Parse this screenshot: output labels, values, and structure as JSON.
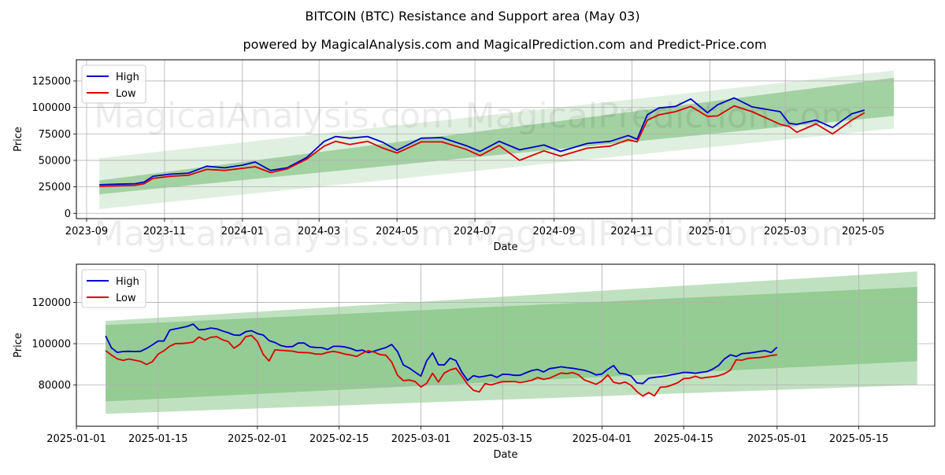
{
  "page": {
    "title": "BITCOIN (BTC) Resistance and Support area (May 03)",
    "subtitle": "powered by MagicalAnalysis.com and MagicalPrediction.com and Predict-Price.com",
    "watermarks": [
      "MagicalAnalysis.com",
      "MagicalPrediction.com"
    ]
  },
  "colors": {
    "high": "#0000cc",
    "low": "#dd0000",
    "band": "#2e9a2e"
  },
  "chart_data": [
    {
      "type": "line",
      "xlabel": "Date",
      "ylabel": "Price",
      "ylim": [
        -5000,
        145000
      ],
      "xlim": [
        "2023-08-24",
        "2025-06-26"
      ],
      "x_ticks": [
        "2023-09",
        "2023-11",
        "2024-01",
        "2024-03",
        "2024-05",
        "2024-07",
        "2024-09",
        "2024-11",
        "2025-01",
        "2025-03",
        "2025-05"
      ],
      "y_ticks": [
        0,
        25000,
        50000,
        75000,
        100000,
        125000
      ],
      "grid": true,
      "legend": {
        "position": "top-left",
        "entries": [
          "High",
          "Low"
        ]
      },
      "bands": [
        {
          "x": [
            "2023-09-11",
            "2025-05-25"
          ],
          "lower": [
            4000,
            80000
          ],
          "upper": [
            52000,
            135000
          ],
          "opacity": 0.15
        },
        {
          "x": [
            "2023-09-11",
            "2025-05-25"
          ],
          "lower": [
            18000,
            92000
          ],
          "upper": [
            31000,
            128000
          ],
          "opacity": 0.35
        }
      ],
      "x": [
        "2023-09-11",
        "2023-09-25",
        "2023-10-09",
        "2023-10-16",
        "2023-10-23",
        "2023-11-06",
        "2023-11-20",
        "2023-12-04",
        "2023-12-18",
        "2024-01-01",
        "2024-01-11",
        "2024-01-23",
        "2024-02-05",
        "2024-02-20",
        "2024-03-05",
        "2024-03-14",
        "2024-03-25",
        "2024-04-08",
        "2024-04-20",
        "2024-05-01",
        "2024-05-20",
        "2024-06-05",
        "2024-06-24",
        "2024-07-05",
        "2024-07-20",
        "2024-08-05",
        "2024-08-24",
        "2024-09-06",
        "2024-09-27",
        "2024-10-15",
        "2024-10-29",
        "2024-11-05",
        "2024-11-13",
        "2024-11-22",
        "2024-12-05",
        "2024-12-17",
        "2024-12-30",
        "2025-01-07",
        "2025-01-20",
        "2025-02-03",
        "2025-02-25",
        "2025-03-04",
        "2025-03-10",
        "2025-03-25",
        "2025-04-07",
        "2025-04-22",
        "2025-05-02"
      ],
      "series": [
        {
          "name": "High",
          "values": [
            27000,
            27500,
            28000,
            29500,
            35000,
            37000,
            38000,
            44500,
            43000,
            45500,
            48500,
            40500,
            43000,
            52500,
            68000,
            72500,
            71000,
            72500,
            67000,
            59500,
            71000,
            71500,
            64000,
            58500,
            68000,
            60000,
            64500,
            58500,
            66000,
            68000,
            73500,
            70000,
            93000,
            99500,
            101000,
            108000,
            95000,
            102500,
            109000,
            100500,
            96000,
            85000,
            84000,
            88000,
            81000,
            94000,
            97500
          ]
        },
        {
          "name": "Low",
          "values": [
            25500,
            26000,
            26500,
            28000,
            33000,
            35000,
            36000,
            41500,
            40500,
            42500,
            44000,
            38500,
            42000,
            51000,
            63500,
            68000,
            65000,
            68000,
            61500,
            57000,
            67500,
            67500,
            60500,
            54500,
            64000,
            50000,
            59000,
            54000,
            61500,
            63500,
            69500,
            67500,
            88000,
            93000,
            96000,
            101000,
            91500,
            92000,
            101500,
            96000,
            84000,
            82000,
            76500,
            84500,
            75000,
            88000,
            95000
          ]
        }
      ]
    },
    {
      "type": "line",
      "xlabel": "Date",
      "ylabel": "Price",
      "ylim": [
        60000,
        138500
      ],
      "xlim": [
        "2025-01-01",
        "2025-05-28"
      ],
      "x_ticks": [
        "2025-01-01",
        "2025-01-15",
        "2025-02-01",
        "2025-02-15",
        "2025-03-01",
        "2025-03-15",
        "2025-04-01",
        "2025-04-15",
        "2025-05-01",
        "2025-05-15"
      ],
      "y_ticks": [
        80000,
        100000,
        120000
      ],
      "grid": true,
      "legend": {
        "position": "top-left",
        "entries": [
          "High",
          "Low"
        ]
      },
      "bands": [
        {
          "x": [
            "2025-01-06",
            "2025-05-25"
          ],
          "lower": [
            66000,
            80000
          ],
          "upper": [
            111000,
            135000
          ],
          "opacity": 0.3
        },
        {
          "x": [
            "2025-01-06",
            "2025-05-25"
          ],
          "lower": [
            72000,
            91500
          ],
          "upper": [
            109000,
            127500
          ],
          "opacity": 0.3
        }
      ],
      "x": [
        "2025-01-06",
        "2025-01-07",
        "2025-01-08",
        "2025-01-09",
        "2025-01-10",
        "2025-01-11",
        "2025-01-12",
        "2025-01-13",
        "2025-01-14",
        "2025-01-15",
        "2025-01-16",
        "2025-01-17",
        "2025-01-18",
        "2025-01-19",
        "2025-01-20",
        "2025-01-21",
        "2025-01-22",
        "2025-01-23",
        "2025-01-24",
        "2025-01-25",
        "2025-01-26",
        "2025-01-27",
        "2025-01-28",
        "2025-01-29",
        "2025-01-30",
        "2025-01-31",
        "2025-02-01",
        "2025-02-02",
        "2025-02-03",
        "2025-02-04",
        "2025-02-05",
        "2025-02-06",
        "2025-02-07",
        "2025-02-08",
        "2025-02-09",
        "2025-02-10",
        "2025-02-11",
        "2025-02-12",
        "2025-02-13",
        "2025-02-14",
        "2025-02-15",
        "2025-02-16",
        "2025-02-17",
        "2025-02-18",
        "2025-02-19",
        "2025-02-20",
        "2025-02-21",
        "2025-02-22",
        "2025-02-23",
        "2025-02-24",
        "2025-02-25",
        "2025-02-26",
        "2025-02-27",
        "2025-02-28",
        "2025-03-01",
        "2025-03-02",
        "2025-03-03",
        "2025-03-04",
        "2025-03-05",
        "2025-03-06",
        "2025-03-07",
        "2025-03-08",
        "2025-03-09",
        "2025-03-10",
        "2025-03-11",
        "2025-03-12",
        "2025-03-13",
        "2025-03-14",
        "2025-03-15",
        "2025-03-16",
        "2025-03-17",
        "2025-03-18",
        "2025-03-19",
        "2025-03-20",
        "2025-03-21",
        "2025-03-22",
        "2025-03-23",
        "2025-03-24",
        "2025-03-25",
        "2025-03-26",
        "2025-03-27",
        "2025-03-28",
        "2025-03-29",
        "2025-03-30",
        "2025-03-31",
        "2025-04-01",
        "2025-04-02",
        "2025-04-03",
        "2025-04-04",
        "2025-04-05",
        "2025-04-06",
        "2025-04-07",
        "2025-04-08",
        "2025-04-09",
        "2025-04-10",
        "2025-04-11",
        "2025-04-12",
        "2025-04-13",
        "2025-04-14",
        "2025-04-15",
        "2025-04-16",
        "2025-04-17",
        "2025-04-18",
        "2025-04-19",
        "2025-04-20",
        "2025-04-21",
        "2025-04-22",
        "2025-04-23",
        "2025-04-24",
        "2025-04-25",
        "2025-04-26",
        "2025-04-27",
        "2025-04-28",
        "2025-04-29",
        "2025-04-30",
        "2025-05-01"
      ],
      "series": [
        {
          "name": "High",
          "values": [
            103800,
            98000,
            95800,
            96200,
            96300,
            96200,
            96300,
            97700,
            99400,
            101300,
            101300,
            106600,
            107200,
            107800,
            108400,
            109500,
            106700,
            106900,
            107600,
            107200,
            106200,
            105300,
            104200,
            104100,
            105800,
            106300,
            104900,
            104200,
            101500,
            100600,
            99100,
            98500,
            98600,
            100300,
            100300,
            98500,
            98200,
            98100,
            97200,
            98700,
            98700,
            98400,
            97700,
            96600,
            96900,
            95700,
            96400,
            97300,
            98100,
            99600,
            96200,
            89700,
            88200,
            86200,
            84300,
            91800,
            95600,
            89800,
            89700,
            93000,
            91800,
            86200,
            82200,
            84500,
            83800,
            84300,
            84900,
            83700,
            85200,
            85100,
            84700,
            84700,
            85900,
            87000,
            87500,
            86300,
            87900,
            88300,
            88800,
            88400,
            88100,
            87600,
            87100,
            86200,
            84900,
            85300,
            87600,
            89400,
            85700,
            85300,
            84300,
            81000,
            80700,
            83300,
            83700,
            84000,
            84400,
            85000,
            85500,
            86100,
            86000,
            85700,
            86100,
            86500,
            87700,
            89500,
            92700,
            94600,
            93800,
            95200,
            95400,
            95800,
            96300,
            96600,
            95700,
            98300
          ]
        },
        {
          "name": "Low",
          "values": [
            96700,
            94500,
            92700,
            91900,
            92600,
            92000,
            91400,
            89900,
            91300,
            94900,
            96600,
            98800,
            100100,
            100100,
            100300,
            100800,
            103200,
            101800,
            103100,
            103400,
            101900,
            101000,
            97800,
            99700,
            103400,
            104000,
            101000,
            94800,
            91600,
            97000,
            96800,
            96600,
            96400,
            95800,
            95700,
            95600,
            95000,
            94900,
            95800,
            96300,
            95700,
            95000,
            94500,
            93800,
            95400,
            96600,
            95900,
            94700,
            94400,
            91100,
            84700,
            82100,
            82400,
            81700,
            79000,
            80800,
            85700,
            81400,
            85800,
            87300,
            88100,
            84400,
            80300,
            77400,
            76600,
            80700,
            80000,
            80900,
            81600,
            81600,
            81700,
            81200,
            81700,
            82300,
            83600,
            82700,
            83300,
            84500,
            85800,
            85500,
            86000,
            84900,
            82400,
            81400,
            80300,
            82000,
            84900,
            81300,
            80700,
            81400,
            79800,
            76800,
            74600,
            76300,
            74700,
            78900,
            79100,
            80000,
            81100,
            83100,
            83300,
            84200,
            83300,
            83700,
            84000,
            84500,
            85500,
            87200,
            92200,
            92000,
            92900,
            93100,
            93300,
            93700,
            94300,
            94600
          ]
        }
      ]
    }
  ]
}
